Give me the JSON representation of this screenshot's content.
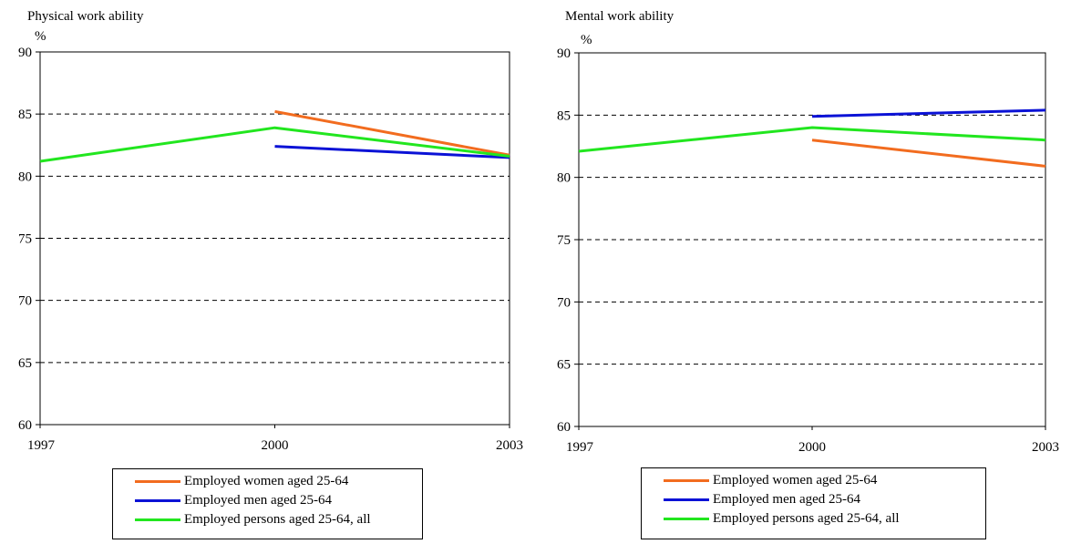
{
  "chart_data": [
    {
      "type": "line",
      "title": "Physical work ability",
      "ylabel": "%",
      "xlabel": "",
      "x": [
        "1997",
        "2000",
        "2003"
      ],
      "ylim": [
        60,
        90
      ],
      "yticks": [
        60,
        65,
        70,
        75,
        80,
        85,
        90
      ],
      "grid": "horizontal dashed",
      "legend_position": "bottom",
      "series": [
        {
          "name": "Employed women aged 25-64",
          "color": "#f26c1f",
          "values": [
            null,
            85.2,
            81.7
          ]
        },
        {
          "name": "Employed men aged 25-64",
          "color": "#0b12d6",
          "values": [
            null,
            82.4,
            81.5
          ]
        },
        {
          "name": "Employed persons aged 25-64, all",
          "color": "#22e61f",
          "values": [
            81.2,
            83.9,
            81.6
          ]
        }
      ]
    },
    {
      "type": "line",
      "title": "Mental work ability",
      "ylabel": "%",
      "xlabel": "",
      "x": [
        "1997",
        "2000",
        "2003"
      ],
      "ylim": [
        60,
        90
      ],
      "yticks": [
        60,
        65,
        70,
        75,
        80,
        85,
        90
      ],
      "grid": "horizontal dashed",
      "legend_position": "bottom",
      "series": [
        {
          "name": "Employed women aged 25-64",
          "color": "#f26c1f",
          "values": [
            null,
            83.0,
            80.9
          ]
        },
        {
          "name": "Employed men aged 25-64",
          "color": "#0b12d6",
          "values": [
            null,
            84.9,
            85.4
          ]
        },
        {
          "name": "Employed persons aged 25-64, all",
          "color": "#22e61f",
          "values": [
            82.1,
            84.0,
            83.0
          ]
        }
      ]
    }
  ]
}
